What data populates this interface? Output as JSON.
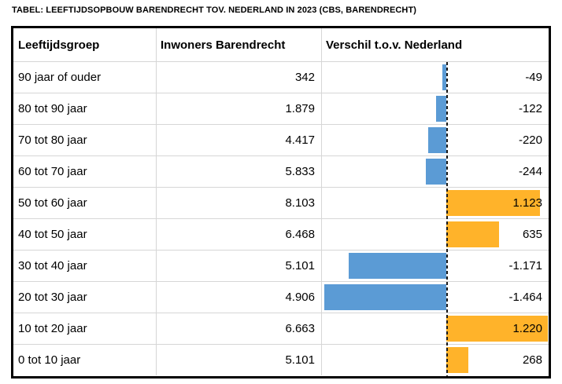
{
  "title": "TABEL: LEEFTIJDSOPBOUW BARENDRECHT TOV. NEDERLAND IN 2023 (CBS, BARENDRECHT)",
  "table": {
    "columns": [
      "Leeftijdsgroep",
      "Inwoners Barendrecht",
      "Verschil t.o.v. Nederland"
    ],
    "rows": [
      {
        "group": "90 jaar of ouder",
        "inwoners": "342",
        "verschil": "-49",
        "verschil_num": -49
      },
      {
        "group": "80 tot 90 jaar",
        "inwoners": "1.879",
        "verschil": "-122",
        "verschil_num": -122
      },
      {
        "group": "70 tot 80 jaar",
        "inwoners": "4.417",
        "verschil": "-220",
        "verschil_num": -220
      },
      {
        "group": "60 tot 70 jaar",
        "inwoners": "5.833",
        "verschil": "-244",
        "verschil_num": -244
      },
      {
        "group": "50 tot 60 jaar",
        "inwoners": "8.103",
        "verschil": "1.123",
        "verschil_num": 1123
      },
      {
        "group": "40 tot 50 jaar",
        "inwoners": "6.468",
        "verschil": "635",
        "verschil_num": 635
      },
      {
        "group": "30 tot 40 jaar",
        "inwoners": "5.101",
        "verschil": "-1.171",
        "verschil_num": -1171
      },
      {
        "group": "20 tot 30 jaar",
        "inwoners": "4.906",
        "verschil": "-1.464",
        "verschil_num": -1464
      },
      {
        "group": "10 tot 20 jaar",
        "inwoners": "6.663",
        "verschil": "1.220",
        "verschil_num": 1220
      },
      {
        "group": "0 tot 10 jaar",
        "inwoners": "5.101",
        "verschil": "268",
        "verschil_num": 268
      }
    ]
  },
  "colors": {
    "positive_bar": "#FFB32A",
    "negative_bar": "#5B9BD5",
    "grid_line": "#D6D6D6",
    "border": "#000000",
    "text": "#000000"
  },
  "chart_data": {
    "type": "bar",
    "orientation": "horizontal",
    "title": "TABEL: LEEFTIJDSOPBOUW BARENDRECHT TOV. NEDERLAND IN 2023 (CBS, BARENDRECHT)",
    "categories": [
      "90 jaar of ouder",
      "80 tot 90 jaar",
      "70 tot 80 jaar",
      "60 tot 70 jaar",
      "50 tot 60 jaar",
      "40 tot 50 jaar",
      "30 tot 40 jaar",
      "20 tot 30 jaar",
      "10 tot 20 jaar",
      "0 tot 10 jaar"
    ],
    "series": [
      {
        "name": "Inwoners Barendrecht",
        "values": [
          342,
          1879,
          4417,
          5833,
          8103,
          6468,
          5101,
          4906,
          6663,
          5101
        ]
      },
      {
        "name": "Verschil t.o.v. Nederland",
        "values": [
          -49,
          -122,
          -220,
          -244,
          1123,
          635,
          -1171,
          -1464,
          1220,
          268
        ]
      }
    ],
    "xlabel": "Verschil t.o.v. Nederland",
    "ylabel": "Leeftijdsgroep",
    "xlim": [
      -1490,
      1230
    ],
    "zero_line": true,
    "grid": false,
    "legend_position": "none",
    "positive_color": "#FFB32A",
    "negative_color": "#5B9BD5"
  }
}
